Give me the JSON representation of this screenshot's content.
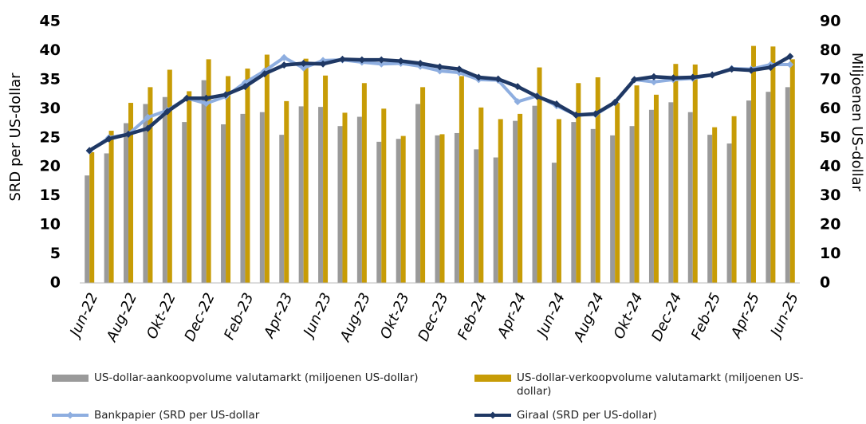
{
  "chart_data": {
    "type": "bar",
    "y_label": "SRD per US-dollar",
    "y2_label": "Miljoenen US-dollar",
    "categories": [
      "Jun-22",
      null,
      "Aug-22",
      null,
      "Okt-22",
      null,
      "Dec-22",
      null,
      "Feb-23",
      null,
      "Apr-23",
      null,
      "Jun-23",
      null,
      "Aug-23",
      null,
      "Okt-23",
      null,
      "Dec-23",
      null,
      "Feb-24",
      null,
      "Apr-24",
      null,
      "Jun-24",
      null,
      "Aug-24",
      null,
      "Okt-24",
      null,
      "Dec-24",
      null,
      "Feb-25",
      null,
      "Apr-25",
      null,
      "Jun-25"
    ],
    "ylim": [
      0,
      45
    ],
    "yticks": [
      0,
      5,
      10,
      15,
      20,
      25,
      30,
      35,
      40,
      45
    ],
    "y2lim": [
      0,
      90
    ],
    "y2ticks": [
      0,
      10,
      20,
      30,
      40,
      50,
      60,
      70,
      80,
      90
    ],
    "series": [
      {
        "name": "US-dollar-aankoopvolume valutamarkt (miljoenen US-dollar)",
        "type": "bar",
        "axis": "y2",
        "color": "#9a9a9a",
        "values": [
          37,
          44.6,
          55,
          61.6,
          64,
          55.4,
          69.8,
          54.6,
          58.2,
          58.8,
          51,
          60.8,
          60.6,
          54,
          57.2,
          48.6,
          49.6,
          61.6,
          50.8,
          51.6,
          46,
          43.2,
          55.8,
          61,
          41.4,
          55.4,
          53,
          50.8,
          54,
          59.6,
          62.2,
          58.8,
          51,
          48,
          62.8,
          65.8,
          67.4
        ]
      },
      {
        "name": "US-dollar-verkoopvolume valutamarkt (miljoenen US-dollar)",
        "type": "bar",
        "axis": "y2",
        "color": "#c79c06",
        "values": [
          45,
          52.4,
          62,
          67.4,
          73.4,
          66,
          77,
          71.2,
          73.8,
          78.6,
          62.6,
          77.2,
          71.4,
          58.6,
          68.8,
          60,
          50.6,
          67.4,
          51.2,
          71.2,
          60.4,
          56.4,
          58.2,
          74.2,
          56.4,
          68.8,
          70.8,
          62,
          68,
          64.8,
          75.4,
          75.2,
          53.6,
          57.4,
          81.6,
          81.4,
          77
        ]
      },
      {
        "name": "Bankpapier (SRD per US-dollar",
        "type": "line",
        "color": "#8eaee0",
        "values": [
          22.7,
          25,
          25.6,
          28.5,
          29.7,
          31.8,
          30.9,
          32.1,
          34.5,
          36.5,
          38.8,
          37,
          38.3,
          38.4,
          38,
          37.7,
          37.8,
          37.3,
          36.5,
          36.2,
          35,
          34.9,
          31.2,
          32.2,
          30.5,
          28.9,
          29,
          31,
          35,
          34.6,
          35,
          35.2,
          35.8,
          36.9,
          36.8,
          37.6,
          37.6
        ]
      },
      {
        "name": "Giraal (SRD per US-dollar)",
        "type": "line",
        "color": "#1f3864",
        "values": [
          22.8,
          24.8,
          25.6,
          26.6,
          29.5,
          31.8,
          31.8,
          32.4,
          33.8,
          36,
          37.5,
          37.8,
          37.7,
          38.5,
          38.4,
          38.4,
          38.2,
          37.8,
          37.2,
          36.8,
          35.4,
          35.1,
          33.8,
          32.1,
          30.8,
          28.9,
          29.1,
          31.1,
          35,
          35.5,
          35.3,
          35.4,
          35.8,
          36.8,
          36.6,
          37.1,
          39
        ]
      }
    ]
  }
}
